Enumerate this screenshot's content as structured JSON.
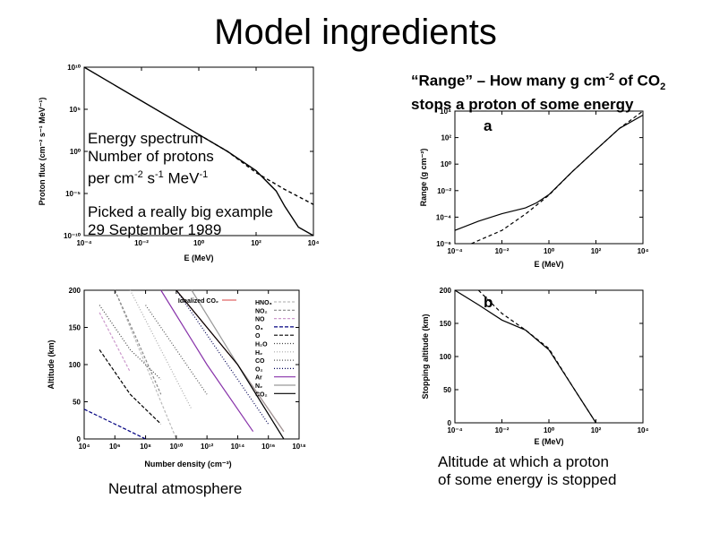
{
  "slide": {
    "title": "Model ingredients"
  },
  "annotations": {
    "range_heading_a": "“Range” – How many g cm",
    "range_heading_sup": "-2",
    "range_heading_b": " of CO",
    "range_heading_sub": "2",
    "range_heading_c": "stops a proton of some energy",
    "spectrum_1": "Energy spectrum",
    "spectrum_2": "Number of protons",
    "spectrum_3a": "per cm",
    "spectrum_3b": "-2",
    "spectrum_3c": " s",
    "spectrum_3d": "-1",
    "spectrum_3e": " MeV",
    "spectrum_3f": "-1",
    "example_1": "Picked a really big example",
    "example_2": "29 September 1989",
    "neutral": "Neutral atmosphere",
    "stop_1": "Altitude at which a proton",
    "stop_2": "of some energy is stopped"
  },
  "chart_data": [
    {
      "id": "spectrum",
      "type": "line",
      "xlabel": "E (MeV)",
      "ylabel": "Proton flux (cm⁻² s⁻¹ MeV⁻¹)",
      "x_scale": "log",
      "y_scale": "log",
      "xlim": [
        0.0001,
        10000
      ],
      "ylim": [
        1e-10,
        10000000000.0
      ],
      "x_ticks": [
        "10⁻⁴",
        "10⁻²",
        "10⁰",
        "10²",
        "10⁴"
      ],
      "y_ticks": [
        "10¹⁰",
        "10⁵",
        "10⁰",
        "10⁻⁵",
        "10⁻¹⁰"
      ],
      "series": [
        {
          "style": "solid",
          "x": [
            0.0001,
            0.001,
            0.01,
            0.1,
            1,
            10,
            100,
            500,
            1000,
            3000,
            10000
          ],
          "y": [
            10000000000.0,
            100000000.0,
            1000000.0,
            10000.0,
            100,
            1,
            0.005,
            2e-05,
            3e-07,
            1e-09,
            1e-12
          ]
        },
        {
          "style": "dashed",
          "x": [
            1,
            10,
            100,
            1000,
            10000
          ],
          "y": [
            100,
            1,
            0.003,
            3e-05,
            5e-07
          ]
        }
      ]
    },
    {
      "id": "range",
      "type": "line",
      "panel_label": "a",
      "xlabel": "E (MeV)",
      "ylabel": "Range (g cm⁻²)",
      "x_scale": "log",
      "y_scale": "log",
      "xlim": [
        0.0001,
        10000
      ],
      "ylim": [
        1e-06,
        10000
      ],
      "x_ticks": [
        "10⁻⁴",
        "10⁻²",
        "10⁰",
        "10²",
        "10⁴"
      ],
      "y_ticks": [
        "10⁴",
        "10²",
        "10⁰",
        "10⁻²",
        "10⁻⁴",
        "10⁻⁶"
      ],
      "series": [
        {
          "style": "solid",
          "x": [
            0.0001,
            0.001,
            0.01,
            0.1,
            0.3,
            1,
            10,
            100,
            1000,
            10000
          ],
          "y": [
            1e-05,
            5e-05,
            0.00018,
            0.0005,
            0.0012,
            0.005,
            0.28,
            12,
            500,
            5000
          ]
        },
        {
          "style": "dashed",
          "x": [
            0.0005,
            0.01,
            0.1,
            1,
            10,
            100,
            1000,
            10000
          ],
          "y": [
            1e-06,
            1e-05,
            0.00017,
            0.0045,
            0.28,
            12,
            500,
            15000
          ]
        }
      ]
    },
    {
      "id": "stopping",
      "type": "line",
      "panel_label": "b",
      "xlabel": "E (MeV)",
      "ylabel": "Stopping altitude (km)",
      "x_scale": "log",
      "y_scale": "linear",
      "xlim": [
        0.0001,
        10000
      ],
      "ylim": [
        0,
        200
      ],
      "x_ticks": [
        "10⁻⁴",
        "10⁻²",
        "10⁰",
        "10²",
        "10⁴"
      ],
      "y_ticks": [
        "200",
        "150",
        "100",
        "50",
        "0"
      ],
      "series": [
        {
          "style": "solid",
          "x": [
            0.0001,
            0.001,
            0.01,
            0.1,
            1,
            10,
            100
          ],
          "y": [
            200,
            178,
            155,
            140,
            110,
            55,
            0
          ]
        },
        {
          "style": "dashed",
          "x": [
            0.001,
            0.01,
            0.1,
            1,
            10,
            100
          ],
          "y": [
            200,
            165,
            140,
            112,
            55,
            0
          ]
        }
      ]
    },
    {
      "id": "density",
      "type": "line",
      "xlabel": "Number density (cm⁻³)",
      "ylabel": "Altitude (km)",
      "x_scale": "log",
      "y_scale": "linear",
      "xlim": [
        10000,
        1e+18
      ],
      "ylim": [
        0,
        200
      ],
      "x_ticks": [
        "10⁴",
        "10⁶",
        "10⁸",
        "10¹⁰",
        "10¹²",
        "10¹⁴",
        "10¹⁶",
        "10¹⁸"
      ],
      "y_ticks": [
        "200",
        "150",
        "100",
        "50",
        "0"
      ],
      "legend_position": "top-right",
      "series": [
        {
          "name": "Idealized CO₂",
          "color": "#e06060",
          "dash": "",
          "x": [
            10000000000.0,
            100000000000000.0,
            1e+17
          ],
          "y": [
            200,
            100,
            10
          ]
        },
        {
          "name": "HNO₃",
          "color": "#bbbbbb",
          "dash": "3,2",
          "x": [
            1000000.0,
            100000000.0,
            10000000000.0
          ],
          "y": [
            200,
            100,
            0
          ]
        },
        {
          "name": "NO₂",
          "color": "#888888",
          "dash": "3,2",
          "x": [
            1000000.0,
            20000000.0,
            1000000000.0
          ],
          "y": [
            200,
            140,
            60
          ]
        },
        {
          "name": "NO",
          "color": "#cc99cc",
          "dash": "3,2",
          "x": [
            100000.0,
            1000000.0,
            10000000.0
          ],
          "y": [
            170,
            130,
            90
          ]
        },
        {
          "name": "O₃",
          "color": "#000080",
          "dash": "4,2",
          "x": [
            10000,
            1000000.0,
            100000000.0
          ],
          "y": [
            40,
            20,
            0
          ]
        },
        {
          "name": "O",
          "color": "#000000",
          "dash": "4,2",
          "x": [
            100000.0,
            10000000.0,
            1000000000.0
          ],
          "y": [
            120,
            60,
            20
          ]
        },
        {
          "name": "H₂O",
          "color": "#444444",
          "dash": "1,2",
          "x": [
            100000.0,
            10000000.0,
            1000000000.0
          ],
          "y": [
            180,
            120,
            80
          ]
        },
        {
          "name": "H₂",
          "color": "#aaaaaa",
          "dash": "1,2",
          "x": [
            10000000.0,
            1000000000.0,
            100000000000.0
          ],
          "y": [
            200,
            120,
            40
          ]
        },
        {
          "name": "CO",
          "color": "#555555",
          "dash": "1,2",
          "x": [
            100000000.0,
            10000000000.0,
            1000000000000.0
          ],
          "y": [
            180,
            120,
            60
          ]
        },
        {
          "name": "O₂",
          "color": "#000055",
          "dash": "1,2",
          "x": [
            10000000000.0,
            10000000000000.0,
            1e+16
          ],
          "y": [
            200,
            110,
            20
          ]
        },
        {
          "name": "Ar",
          "color": "#8833aa",
          "dash": "",
          "x": [
            1000000000.0,
            1000000000000.0,
            1000000000000000.0
          ],
          "y": [
            200,
            100,
            10
          ]
        },
        {
          "name": "N₂",
          "color": "#999999",
          "dash": "",
          "x": [
            100000000000.0,
            100000000000000.0,
            1e+17
          ],
          "y": [
            200,
            100,
            10
          ]
        },
        {
          "name": "CO₂",
          "color": "#000000",
          "dash": "",
          "x": [
            10000000000.0,
            100000000000000.0,
            1e+17
          ],
          "y": [
            200,
            100,
            0
          ]
        }
      ]
    }
  ]
}
